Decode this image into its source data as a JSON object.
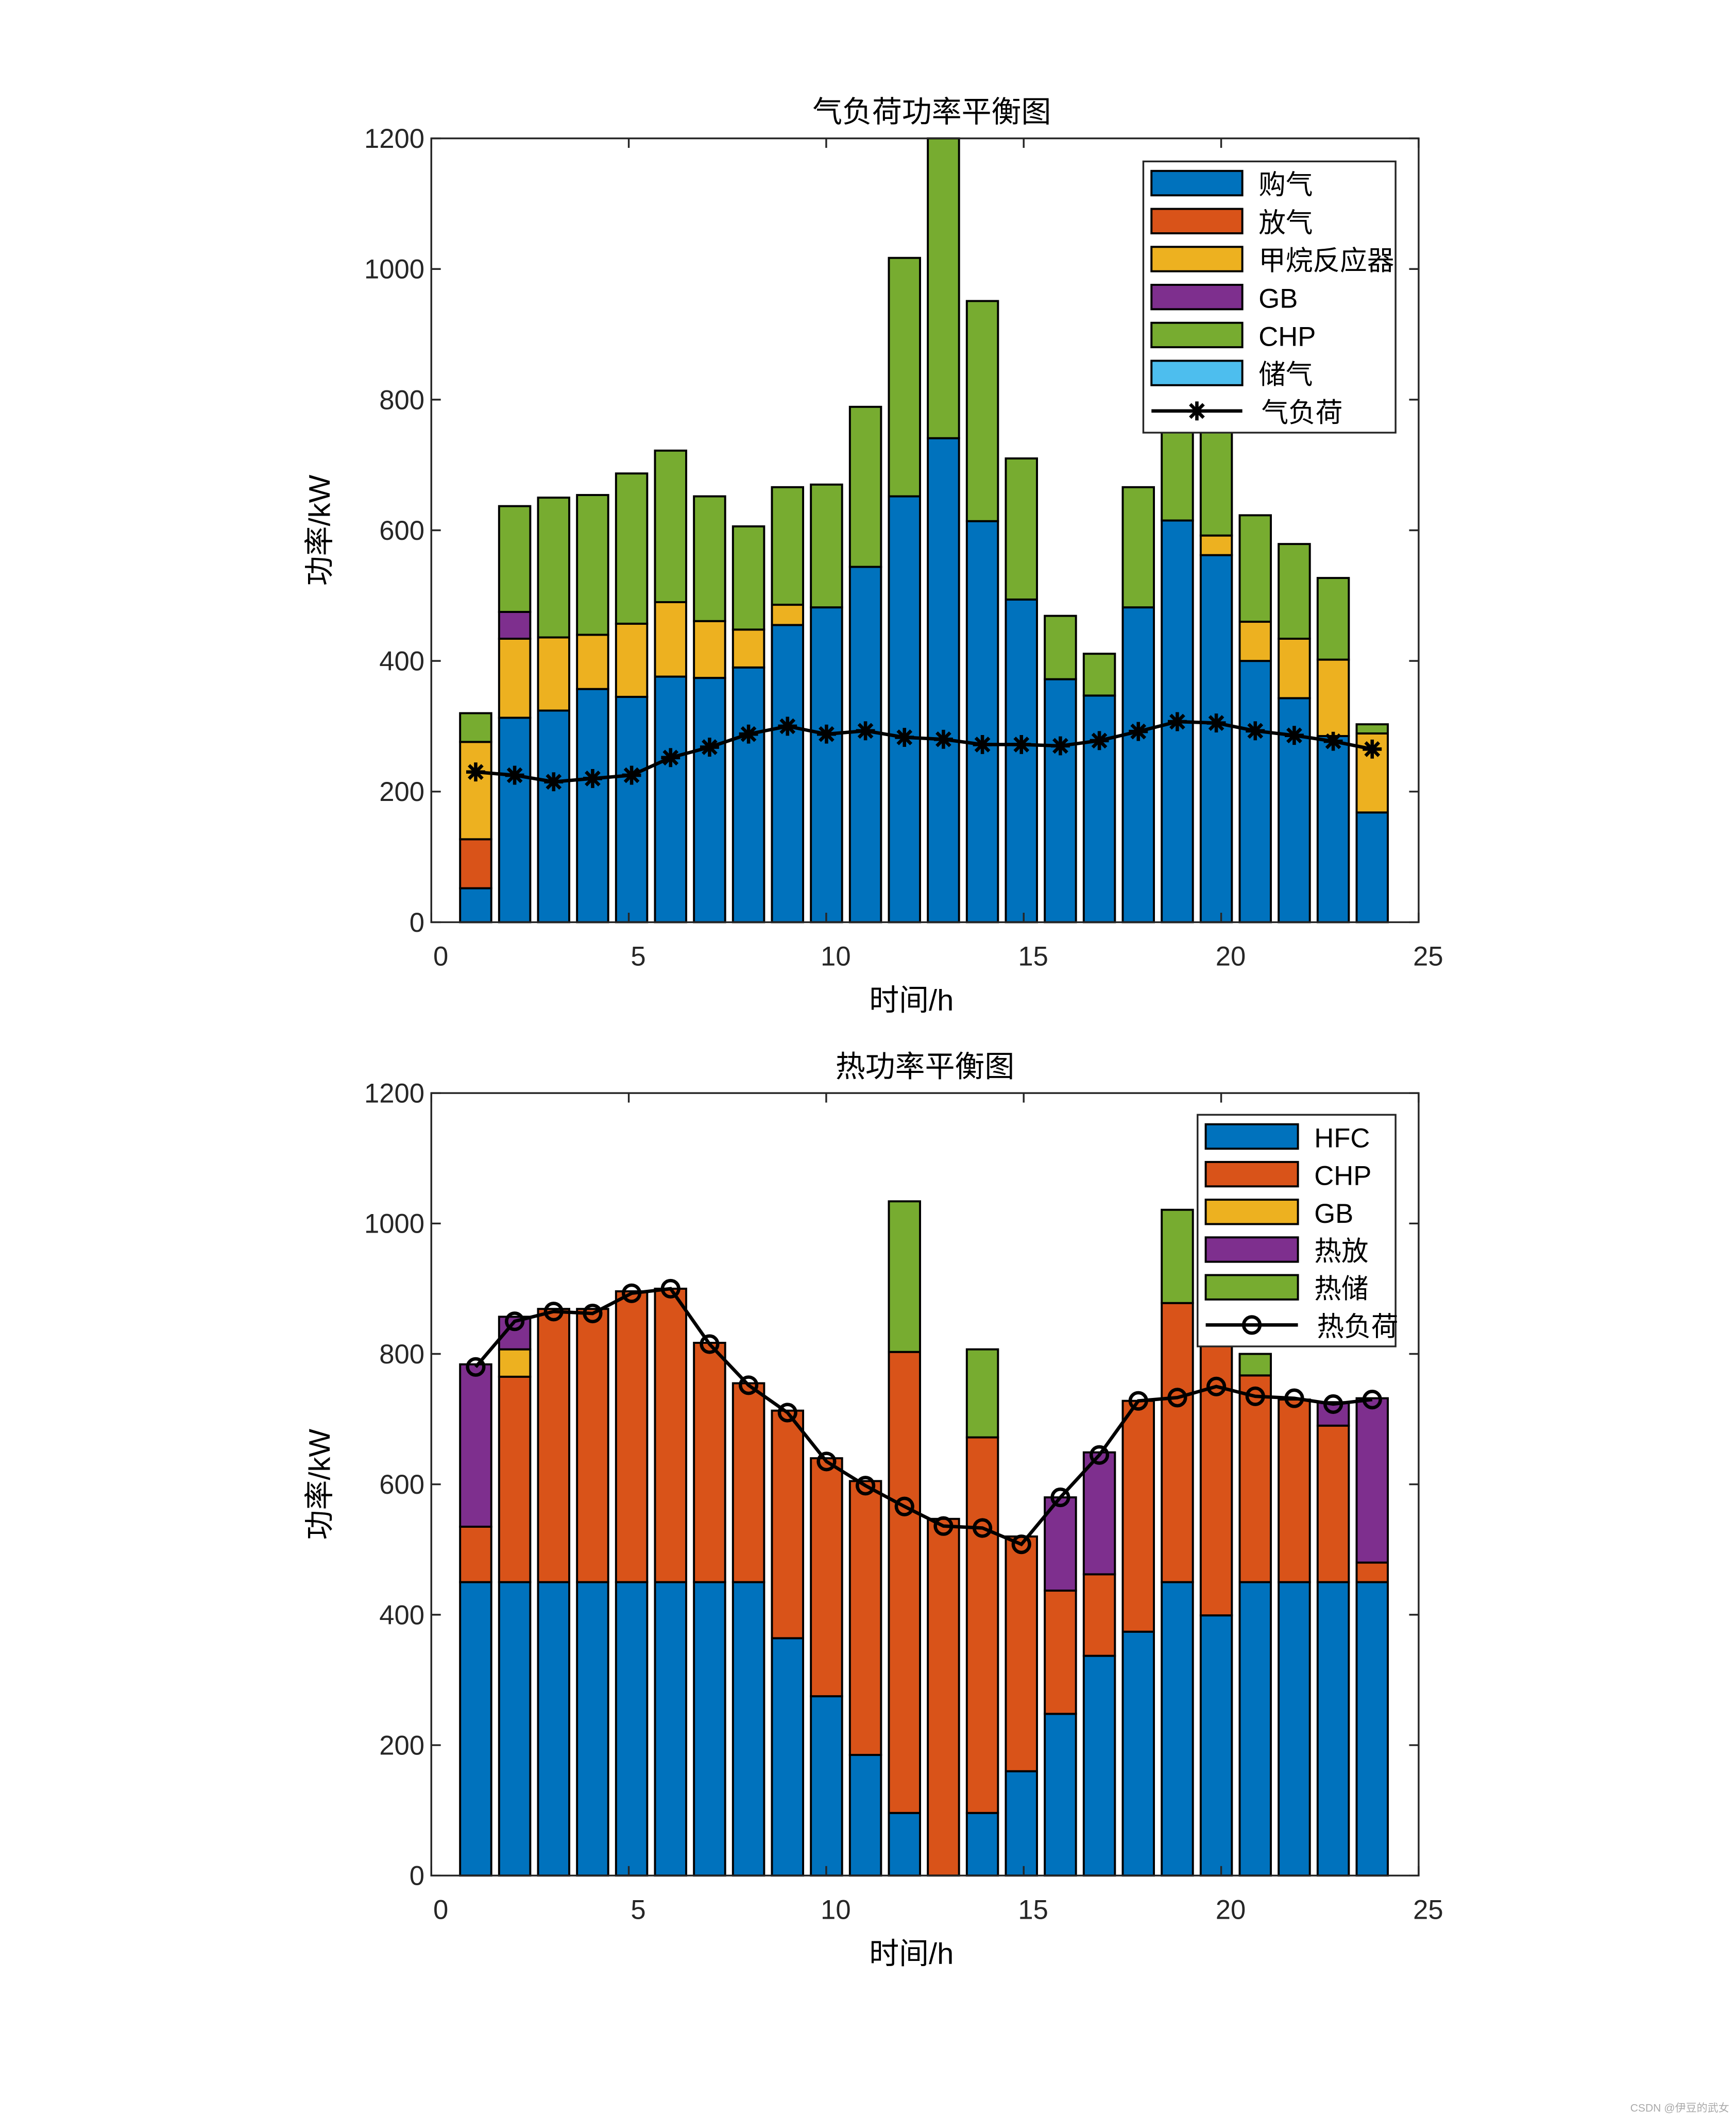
{
  "colors": {
    "blue": "#0072BD",
    "red": "#D95319",
    "yellow": "#EDB120",
    "purple": "#7E2F8E",
    "green": "#77AC30",
    "cyan": "#4DBEEE",
    "line": "#000000"
  },
  "watermark": "CSDN @伊豆的武女",
  "chart_data": [
    {
      "type": "bar",
      "stacked": true,
      "title": "气负荷功率平衡图",
      "xlabel": "时间/h",
      "ylabel": "功率/kW",
      "xlim": [
        0,
        25
      ],
      "ylim": [
        0,
        1200
      ],
      "xticks": [
        0,
        5,
        10,
        15,
        20,
        25
      ],
      "yticks": [
        0,
        200,
        400,
        600,
        800,
        1000,
        1200
      ],
      "legend_position": "top-right",
      "x": [
        1,
        2,
        3,
        4,
        5,
        6,
        7,
        8,
        9,
        10,
        11,
        12,
        13,
        14,
        15,
        16,
        17,
        18,
        19,
        20,
        21,
        22,
        23,
        24
      ],
      "series": [
        {
          "name": "购气",
          "color": "#0072BD",
          "values": [
            52,
            313,
            324,
            357,
            345,
            376,
            374,
            390,
            455,
            482,
            544,
            652,
            741,
            614,
            494,
            372,
            347,
            482,
            615,
            562,
            400,
            343,
            285,
            168
          ]
        },
        {
          "name": "放气",
          "color": "#D95319",
          "values": [
            75,
            0,
            0,
            0,
            0,
            0,
            0,
            0,
            0,
            0,
            0,
            0,
            0,
            0,
            0,
            0,
            0,
            0,
            0,
            0,
            0,
            0,
            0,
            0
          ]
        },
        {
          "name": "甲烷反应器",
          "color": "#EDB120",
          "values": [
            149,
            121,
            112,
            83,
            112,
            114,
            87,
            58,
            31,
            0,
            0,
            0,
            0,
            0,
            0,
            0,
            0,
            0,
            0,
            30,
            60,
            91,
            117,
            121
          ]
        },
        {
          "name": "GB",
          "color": "#7E2F8E",
          "values": [
            0,
            41,
            0,
            0,
            0,
            0,
            0,
            0,
            0,
            0,
            0,
            0,
            0,
            0,
            0,
            0,
            0,
            0,
            0,
            0,
            0,
            0,
            0,
            0
          ]
        },
        {
          "name": "CHP",
          "color": "#77AC30",
          "values": [
            44,
            162,
            214,
            214,
            230,
            232,
            191,
            158,
            180,
            188,
            245,
            365,
            459,
            337,
            216,
            97,
            64,
            184,
            235,
            210,
            163,
            145,
            125,
            14
          ]
        },
        {
          "name": "储气",
          "color": "#4DBEEE",
          "values": [
            0,
            0,
            0,
            0,
            0,
            0,
            0,
            0,
            0,
            0,
            0,
            0,
            0,
            0,
            0,
            0,
            0,
            0,
            0,
            0,
            0,
            0,
            0,
            0
          ]
        }
      ],
      "line": {
        "name": "气负荷",
        "marker": "asterisk",
        "values": [
          230,
          225,
          215,
          220,
          225,
          252,
          268,
          288,
          300,
          288,
          293,
          283,
          280,
          272,
          272,
          270,
          278,
          292,
          307,
          305,
          293,
          286,
          277,
          265
        ]
      }
    },
    {
      "type": "bar",
      "stacked": true,
      "title": "热功率平衡图",
      "xlabel": "时间/h",
      "ylabel": "功率/kW",
      "xlim": [
        0,
        25
      ],
      "ylim": [
        0,
        1200
      ],
      "xticks": [
        0,
        5,
        10,
        15,
        20,
        25
      ],
      "yticks": [
        0,
        200,
        400,
        600,
        800,
        1000,
        1200
      ],
      "legend_position": "top-right",
      "x": [
        1,
        2,
        3,
        4,
        5,
        6,
        7,
        8,
        9,
        10,
        11,
        12,
        13,
        14,
        15,
        16,
        17,
        18,
        19,
        20,
        21,
        22,
        23,
        24
      ],
      "series": [
        {
          "name": "HFC",
          "color": "#0072BD",
          "values": [
            450,
            450,
            450,
            450,
            450,
            450,
            450,
            450,
            364,
            275,
            185,
            96,
            0,
            96,
            160,
            248,
            337,
            374,
            450,
            399,
            450,
            450,
            450,
            450
          ]
        },
        {
          "name": "CHP",
          "color": "#D95319",
          "values": [
            85,
            315,
            419,
            419,
            446,
            450,
            367,
            305,
            349,
            365,
            420,
            707,
            547,
            576,
            360,
            189,
            125,
            354,
            428,
            441,
            317,
            280,
            240,
            30
          ]
        },
        {
          "name": "GB",
          "color": "#EDB120",
          "values": [
            0,
            42,
            0,
            0,
            0,
            0,
            0,
            0,
            0,
            0,
            0,
            0,
            0,
            0,
            0,
            0,
            0,
            0,
            0,
            0,
            0,
            0,
            0,
            0
          ]
        },
        {
          "name": "热放",
          "color": "#7E2F8E",
          "values": [
            249,
            50,
            0,
            0,
            0,
            0,
            0,
            0,
            0,
            0,
            0,
            0,
            0,
            0,
            0,
            143,
            187,
            0,
            0,
            0,
            0,
            0,
            36,
            252
          ]
        },
        {
          "name": "热储",
          "color": "#77AC30",
          "values": [
            0,
            0,
            0,
            0,
            0,
            0,
            0,
            0,
            0,
            0,
            0,
            231,
            0,
            135,
            0,
            0,
            0,
            0,
            143,
            0,
            33,
            0,
            0,
            0
          ]
        }
      ],
      "line": {
        "name": "热负荷",
        "marker": "circle",
        "values": [
          780,
          850,
          865,
          862,
          893,
          900,
          815,
          752,
          710,
          635,
          598,
          566,
          536,
          533,
          508,
          580,
          645,
          728,
          733,
          750,
          735,
          732,
          723,
          730
        ]
      }
    }
  ]
}
